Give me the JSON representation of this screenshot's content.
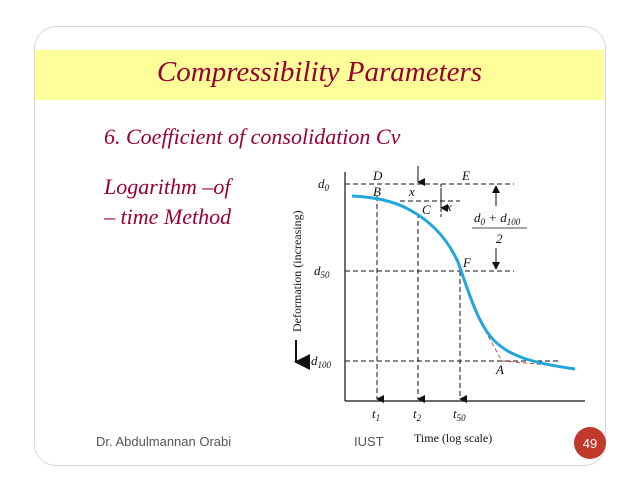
{
  "slide": {
    "title": "Compressibility Parameters",
    "subtitle": "6. Coefficient of  consolidation Cv",
    "method_line1": "Logarithm –of",
    "method_line2": "– time Method",
    "colors": {
      "title": "#990033",
      "band": "#ffff99",
      "curve": "#1fa6dc",
      "badge": "#c0392b"
    }
  },
  "diagram": {
    "y_axis_label": "Deformation (increasing)",
    "x_axis_label": "Time (log scale)",
    "y_ticks": {
      "d0": "d",
      "d0_sub": "0",
      "d50": "d",
      "d50_sub": "50",
      "d100": "d",
      "d100_sub": "100"
    },
    "x_ticks": {
      "t1": "t",
      "t1_sub": "1",
      "t2": "t",
      "t2_sub": "2",
      "t50": "t",
      "t50_sub": "50"
    },
    "points": {
      "D": "D",
      "B": "B",
      "C": "C",
      "E": "E",
      "F": "F",
      "A": "A"
    },
    "x_marks": {
      "x1": "x",
      "x2": "x"
    },
    "formula": {
      "num": "d",
      "num_sub1": "0",
      "plus": " + d",
      "num_sub2": "100",
      "den": "2"
    }
  },
  "footer": {
    "author": "Dr. Abdulmannan Orabi",
    "institution": "IUST",
    "page_number": "49"
  }
}
